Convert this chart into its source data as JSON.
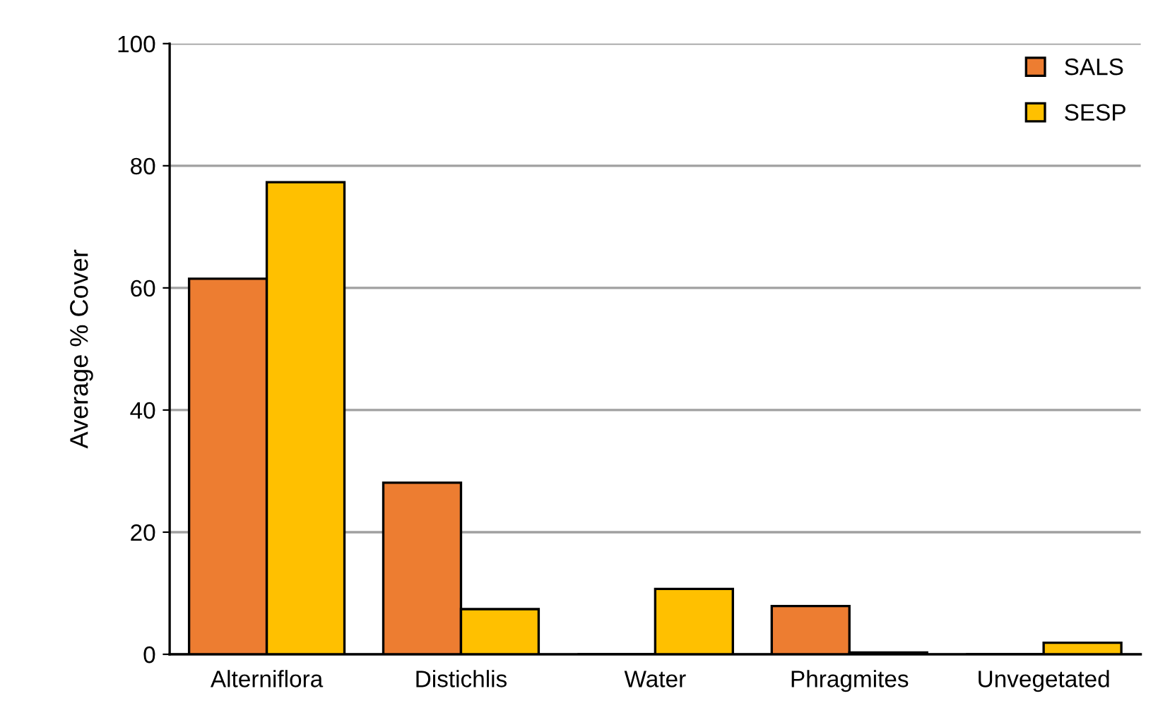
{
  "chart_data": {
    "type": "bar",
    "ylabel": "Average % Cover",
    "categories": [
      "Alterniflora",
      "Distichlis",
      "Water",
      "Phragmites",
      "Unvegetated"
    ],
    "series": [
      {
        "name": "SALS",
        "color": "#ed7d31",
        "values": [
          61.5,
          28.1,
          0,
          7.9,
          0
        ]
      },
      {
        "name": "SESP",
        "color": "#ffc000",
        "values": [
          77.3,
          7.4,
          10.7,
          0.3,
          1.9
        ]
      }
    ],
    "ylim": [
      0,
      100
    ],
    "yticks": [
      0,
      20,
      40,
      60,
      80,
      100
    ],
    "grid": "y",
    "legend": "top right"
  }
}
